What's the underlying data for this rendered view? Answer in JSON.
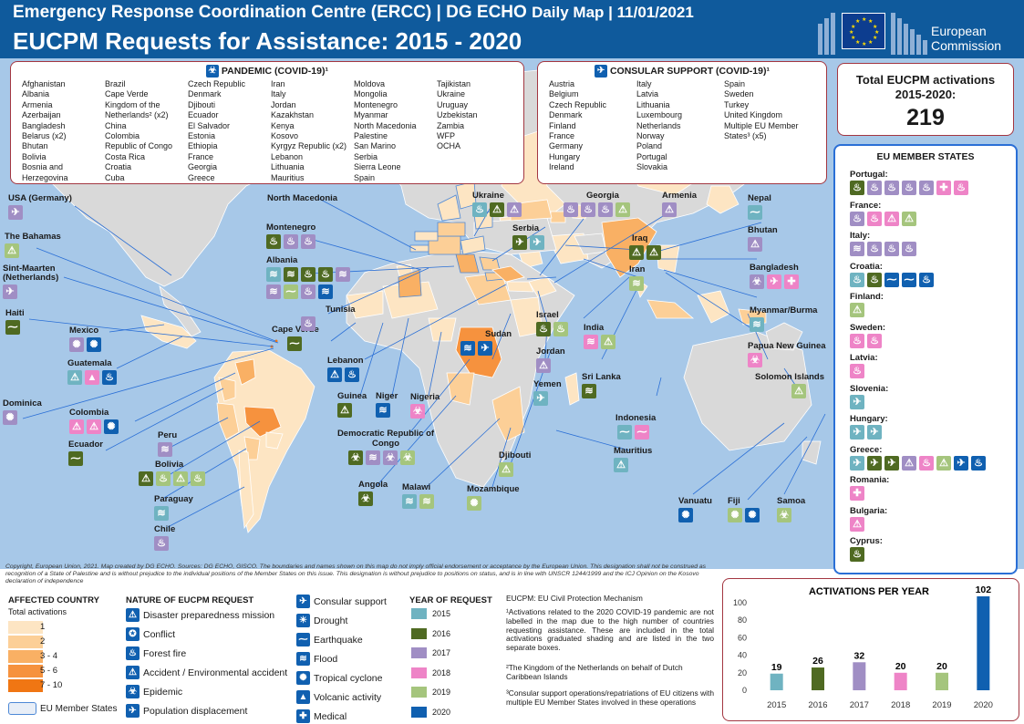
{
  "header": {
    "title_main": "Emergency Response Coordination Centre (ERCC) | DG ECHO",
    "title_right": "Daily Map | 11/01/2021",
    "subtitle": "EUCPM Requests for Assistance: 2015 - 2020",
    "logo_line1": "European",
    "logo_line2": "Commission"
  },
  "pandemic": {
    "title": "PANDEMIC (COVID-19)¹",
    "columns": [
      [
        "Afghanistan",
        "Albania",
        "Armenia",
        "Azerbaijan",
        "Bangladesh",
        "Belarus (x2)",
        "Bhutan",
        "Bolivia",
        "Bosnia and",
        "Herzegovina"
      ],
      [
        "Brazil",
        "Cape Verde",
        "Kingdom of the",
        "Netherlands² (x2)",
        "China",
        "Colombia",
        "Republic of Congo",
        "Costa Rica",
        "Croatia",
        "Cuba"
      ],
      [
        "Czech Republic",
        "Denmark",
        "Djibouti",
        "Ecuador",
        "El Salvador",
        "Estonia",
        "Ethiopia",
        "France",
        "Georgia",
        "Greece"
      ],
      [
        "Iran",
        "Italy",
        "Jordan",
        "Kazakhstan",
        "Kenya",
        "Kosovo",
        "Kyrgyz Republic (x2)",
        "Lebanon",
        "Lithuania",
        "Mauritius"
      ],
      [
        "Moldova",
        "Mongolia",
        "Montenegro",
        "Myanmar",
        "North Macedonia",
        "Palestine",
        "San Marino",
        "Serbia",
        "Sierra Leone",
        "Spain"
      ],
      [
        "Tajikistan",
        "Ukraine",
        "Uruguay",
        "Uzbekistan",
        "Zambia",
        "WFP",
        "OCHA"
      ]
    ]
  },
  "consular": {
    "title": "CONSULAR SUPPORT (COVID-19)¹",
    "columns": [
      [
        "Austria",
        "Belgium",
        "Czech Republic",
        "Denmark",
        "Finland",
        "France",
        "Germany",
        "Hungary",
        "Ireland"
      ],
      [
        "Italy",
        "Latvia",
        "Lithuania",
        "Luxembourg",
        "Netherlands",
        "Norway",
        "Poland",
        "Portugal",
        "Slovakia"
      ],
      [
        "Spain",
        "Sweden",
        "Turkey",
        "United Kingdom",
        "Multiple EU Member",
        "States³ (x5)"
      ]
    ]
  },
  "total": {
    "label_1": "Total EUCPM  activations",
    "label_2": "2015-2020:",
    "value": "219"
  },
  "eu_panel": {
    "title": "EU MEMBER STATES",
    "rows": [
      {
        "name": "Portugal:",
        "icons": [
          {
            "y": "2016",
            "g": "♨"
          },
          {
            "y": "2017",
            "g": "♨"
          },
          {
            "y": "2017",
            "g": "♨"
          },
          {
            "y": "2017",
            "g": "♨"
          },
          {
            "y": "2017",
            "g": "♨"
          },
          {
            "y": "2018",
            "g": "✚"
          },
          {
            "y": "2018",
            "g": "♨"
          }
        ]
      },
      {
        "name": "France:",
        "icons": [
          {
            "y": "2017",
            "g": "♨"
          },
          {
            "y": "2018",
            "g": "♨"
          },
          {
            "y": "2018",
            "g": "⚠"
          },
          {
            "y": "2019",
            "g": "⚠"
          }
        ]
      },
      {
        "name": "Italy:",
        "icons": [
          {
            "y": "2017",
            "g": "≋"
          },
          {
            "y": "2017",
            "g": "♨"
          },
          {
            "y": "2017",
            "g": "♨"
          },
          {
            "y": "2017",
            "g": "♨"
          }
        ]
      },
      {
        "name": "Croatia:",
        "icons": [
          {
            "y": "2015",
            "g": "♨"
          },
          {
            "y": "2016",
            "g": "♨"
          },
          {
            "y": "2020",
            "g": "⁓"
          },
          {
            "y": "2020",
            "g": "⁓"
          },
          {
            "y": "2020",
            "g": "♨"
          }
        ]
      },
      {
        "name": "Finland:",
        "icons": [
          {
            "y": "2019",
            "g": "⚠"
          }
        ]
      },
      {
        "name": "Sweden:",
        "icons": [
          {
            "y": "2018",
            "g": "♨"
          },
          {
            "y": "2018",
            "g": "♨"
          }
        ]
      },
      {
        "name": "Latvia:",
        "icons": [
          {
            "y": "2018",
            "g": "♨"
          }
        ]
      },
      {
        "name": "Slovenia:",
        "icons": [
          {
            "y": "2015",
            "g": "✈"
          }
        ]
      },
      {
        "name": "Hungary:",
        "icons": [
          {
            "y": "2015",
            "g": "✈"
          },
          {
            "y": "2015",
            "g": "✈"
          }
        ]
      },
      {
        "name": "Greece:",
        "icons": [
          {
            "y": "2015",
            "g": "✈"
          },
          {
            "y": "2016",
            "g": "✈"
          },
          {
            "y": "2016",
            "g": "✈"
          },
          {
            "y": "2017",
            "g": "⚠"
          },
          {
            "y": "2018",
            "g": "♨"
          },
          {
            "y": "2019",
            "g": "⚠"
          },
          {
            "y": "2020",
            "g": "✈"
          },
          {
            "y": "2020",
            "g": "♨"
          }
        ]
      },
      {
        "name": "Romania:",
        "icons": [
          {
            "y": "2018",
            "g": "✚"
          }
        ]
      },
      {
        "name": "Bulgaria:",
        "icons": [
          {
            "y": "2018",
            "g": "⚠"
          }
        ]
      },
      {
        "name": "Cyprus:",
        "icons": [
          {
            "y": "2016",
            "g": "♨"
          }
        ]
      }
    ]
  },
  "map_labels": [
    {
      "name": "USA (Germany)",
      "icons": [
        {
          "y": "2017",
          "g": "✈"
        }
      ]
    },
    {
      "name": "The Bahamas",
      "icons": [
        {
          "y": "2019",
          "g": "⚠"
        }
      ]
    },
    {
      "name": "Sint-Maarten (Netherlands)",
      "icons": [
        {
          "y": "2017",
          "g": "✈"
        }
      ]
    },
    {
      "name": "Haiti",
      "icons": [
        {
          "y": "2016",
          "g": "⁓"
        }
      ]
    },
    {
      "name": "Mexico",
      "icons": [
        {
          "y": "2017",
          "g": "✺"
        },
        {
          "y": "2020",
          "g": "✺"
        }
      ]
    },
    {
      "name": "Guatemala",
      "icons": [
        {
          "y": "2015",
          "g": "⚠"
        },
        {
          "y": "2018",
          "g": "▲"
        },
        {
          "y": "2020",
          "g": "♨"
        }
      ]
    },
    {
      "name": "Dominica",
      "icons": [
        {
          "y": "2017",
          "g": "✺"
        }
      ]
    },
    {
      "name": "Colombia",
      "icons": [
        {
          "y": "2018",
          "g": "⚠"
        },
        {
          "y": "2018",
          "g": "⚠"
        },
        {
          "y": "2020",
          "g": "✺"
        }
      ]
    },
    {
      "name": "Ecuador",
      "icons": [
        {
          "y": "2016",
          "g": "⁓"
        }
      ]
    },
    {
      "name": "Peru",
      "icons": [
        {
          "y": "2017",
          "g": "≋"
        }
      ]
    },
    {
      "name": "Bolivia",
      "icons": [
        {
          "y": "2016",
          "g": "⚠"
        },
        {
          "y": "2019",
          "g": "♨"
        },
        {
          "y": "2019",
          "g": "⚠"
        },
        {
          "y": "2019",
          "g": "♨"
        }
      ]
    },
    {
      "name": "Paraguay",
      "icons": [
        {
          "y": "2015",
          "g": "≋"
        }
      ]
    },
    {
      "name": "Chile",
      "icons": [
        {
          "y": "2017",
          "g": "♨"
        }
      ]
    },
    {
      "name": "North Macedonia",
      "icons": []
    },
    {
      "name": "Montenegro",
      "icons": [
        {
          "y": "2016",
          "g": "♨"
        },
        {
          "y": "2017",
          "g": "♨"
        },
        {
          "y": "2017",
          "g": "♨"
        }
      ]
    },
    {
      "name": "Albania",
      "icons": [
        {
          "y": "2015",
          "g": "≋"
        },
        {
          "y": "2016",
          "g": "≋"
        },
        {
          "y": "2016",
          "g": "♨"
        },
        {
          "y": "2016",
          "g": "♨"
        },
        {
          "y": "2017",
          "g": "≋"
        },
        {
          "y": "2017",
          "g": "≋"
        },
        {
          "y": "2019",
          "g": "⁓"
        },
        {
          "y": "2017",
          "g": "♨"
        },
        {
          "y": "2020",
          "g": "≋"
        }
      ]
    },
    {
      "name": "Cape Verde",
      "icons": [
        {
          "y": "2016",
          "g": "⁓"
        }
      ]
    },
    {
      "name": "Tunisia",
      "icons": [
        {
          "y": "2017",
          "g": "♨"
        }
      ]
    },
    {
      "name": "Lebanon",
      "icons": [
        {
          "y": "2020",
          "g": "⚠"
        },
        {
          "y": "2020",
          "g": "♨"
        }
      ]
    },
    {
      "name": "Guinea",
      "icons": [
        {
          "y": "2016",
          "g": "⚠"
        }
      ]
    },
    {
      "name": "Niger",
      "icons": [
        {
          "y": "2020",
          "g": "≋"
        }
      ]
    },
    {
      "name": "Nigeria",
      "icons": [
        {
          "y": "2018",
          "g": "☣"
        }
      ]
    },
    {
      "name": "Democratic Republic of Congo",
      "icons": [
        {
          "y": "2016",
          "g": "☣"
        },
        {
          "y": "2017",
          "g": "≋"
        },
        {
          "y": "2017",
          "g": "☣"
        },
        {
          "y": "2019",
          "g": "☣"
        }
      ]
    },
    {
      "name": "Angola",
      "icons": [
        {
          "y": "2016",
          "g": "☣"
        }
      ]
    },
    {
      "name": "Malawi",
      "icons": [
        {
          "y": "2015",
          "g": "≋"
        },
        {
          "y": "2019",
          "g": "≋"
        }
      ]
    },
    {
      "name": "Mozambique",
      "icons": [
        {
          "y": "2019",
          "g": "✺"
        }
      ]
    },
    {
      "name": "Ukraine",
      "icons": [
        {
          "y": "2015",
          "g": "♨"
        },
        {
          "y": "2016",
          "g": "⚠"
        },
        {
          "y": "2017",
          "g": "⚠"
        }
      ]
    },
    {
      "name": "Georgia",
      "icons": [
        {
          "y": "2017",
          "g": "♨"
        },
        {
          "y": "2017",
          "g": "♨"
        },
        {
          "y": "2017",
          "g": "♨"
        },
        {
          "y": "2019",
          "g": "⚠"
        }
      ]
    },
    {
      "name": "Armenia",
      "icons": [
        {
          "y": "2017",
          "g": "⚠"
        }
      ]
    },
    {
      "name": "Serbia",
      "icons": [
        {
          "y": "2016",
          "g": "✈"
        },
        {
          "y": "2015",
          "g": "✈"
        }
      ]
    },
    {
      "name": "Iraq",
      "icons": [
        {
          "y": "2016",
          "g": "⚠"
        },
        {
          "y": "2016",
          "g": "⚠"
        }
      ]
    },
    {
      "name": "Iran",
      "icons": [
        {
          "y": "2019",
          "g": "≋"
        }
      ]
    },
    {
      "name": "Israel",
      "icons": [
        {
          "y": "2016",
          "g": "♨"
        },
        {
          "y": "2019",
          "g": "♨"
        }
      ]
    },
    {
      "name": "Jordan",
      "icons": [
        {
          "y": "2017",
          "g": "⚠"
        }
      ]
    },
    {
      "name": "Sudan",
      "icons": [
        {
          "y": "2020",
          "g": "≋"
        },
        {
          "y": "2020",
          "g": "✈"
        }
      ]
    },
    {
      "name": "Yemen",
      "icons": [
        {
          "y": "2015",
          "g": "✈"
        }
      ]
    },
    {
      "name": "India",
      "icons": [
        {
          "y": "2018",
          "g": "≋"
        },
        {
          "y": "2019",
          "g": "⚠"
        }
      ]
    },
    {
      "name": "Sri Lanka",
      "icons": [
        {
          "y": "2016",
          "g": "≋"
        }
      ]
    },
    {
      "name": "Djibouti",
      "icons": [
        {
          "y": "2019",
          "g": "⚠"
        }
      ]
    },
    {
      "name": "Mauritius",
      "icons": [
        {
          "y": "2015",
          "g": "⚠"
        }
      ]
    },
    {
      "name": "Indonesia",
      "icons": [
        {
          "y": "2015",
          "g": "⁓"
        },
        {
          "y": "2018",
          "g": "⁓"
        }
      ]
    },
    {
      "name": "Nepal",
      "icons": [
        {
          "y": "2015",
          "g": "⁓"
        }
      ]
    },
    {
      "name": "Bhutan",
      "icons": [
        {
          "y": "2017",
          "g": "⚠"
        }
      ]
    },
    {
      "name": "Bangladesh",
      "icons": [
        {
          "y": "2017",
          "g": "☣"
        },
        {
          "y": "2018",
          "g": "✈"
        },
        {
          "y": "2018",
          "g": "✚"
        }
      ]
    },
    {
      "name": "Myanmar/Burma",
      "icons": [
        {
          "y": "2015",
          "g": "≋"
        }
      ]
    },
    {
      "name": "Papua New Guinea",
      "icons": [
        {
          "y": "2018",
          "g": "☣"
        }
      ]
    },
    {
      "name": "Solomon Islands",
      "icons": [
        {
          "y": "2019",
          "g": "⚠"
        }
      ]
    },
    {
      "name": "Vanuatu",
      "icons": [
        {
          "y": "2020",
          "g": "✺"
        }
      ]
    },
    {
      "name": "Fiji",
      "icons": [
        {
          "y": "2019",
          "g": "✺"
        },
        {
          "y": "2020",
          "g": "✺"
        }
      ]
    },
    {
      "name": "Samoa",
      "icons": [
        {
          "y": "2019",
          "g": "☣"
        }
      ]
    }
  ],
  "footer": {
    "copyright": "Copyright, European Union, 2021. Map created by DG ECHO.  Sources: DG ECHO, GISCO. The boundaries and names shown on this map do not imply official endorsement or acceptance by the European Union. This designation shall not be construed as recognition of a State of Palestine and is without prejudice to the individual positions of the Member States on this issue. This designation is without prejudice to positions on status, and is in line with UNSCR 1244/1999  and the ICJ Opinion on the Kosovo declaration of independence",
    "affected_title": "AFFECTED COUNTRY",
    "affected_sub": "Total activations",
    "shades": [
      {
        "label": "1",
        "color": "#fde5c3"
      },
      {
        "label": "2",
        "color": "#fccf97"
      },
      {
        "label": "3 - 4",
        "color": "#f9b064"
      },
      {
        "label": "5 - 6",
        "color": "#f6923e"
      },
      {
        "label": "7 - 10",
        "color": "#f07613"
      }
    ],
    "eu_member_label": "EU Member States",
    "nature_title": "NATURE OF EUCPM REQUEST",
    "nature": [
      {
        "label": "Disaster preparedness mission",
        "g": "⚠"
      },
      {
        "label": "Conflict",
        "g": "✪"
      },
      {
        "label": "Forest fire",
        "g": "♨"
      },
      {
        "label": "Accident / Environmental accident",
        "g": "⚠"
      },
      {
        "label": "Epidemic",
        "g": "☣"
      },
      {
        "label": "Population displacement",
        "g": "✈"
      },
      {
        "label": "Consular support",
        "g": "✈"
      },
      {
        "label": "Drought",
        "g": "☀"
      },
      {
        "label": "Earthquake",
        "g": "⁓"
      },
      {
        "label": "Flood",
        "g": "≋"
      },
      {
        "label": "Tropical cyclone",
        "g": "✺"
      },
      {
        "label": "Volcanic activity",
        "g": "▲"
      },
      {
        "label": "Medical",
        "g": "✚"
      }
    ],
    "year_title": "YEAR OF REQUEST",
    "years": [
      "2015",
      "2016",
      "2017",
      "2018",
      "2019",
      "2020"
    ],
    "eucpm_def": "EUCPM: EU Civil Protection Mechanism",
    "note1": "¹Activations related to the 2020 COVID-19 pandemic are not labelled in the map due to the high number of countries requesting assistance. These are included in the total activations graduated shading and are listed in the two separate boxes.",
    "note2": "²The Kingdom of the Netherlands on behalf of Dutch Caribbean Islands",
    "note3": "³Consular support operations/repatriations of EU citizens with multiple EU Member States involved in these operations"
  },
  "colors": {
    "y2015": "#6fb3c1",
    "y2016": "#4f6a22",
    "y2017": "#a08ec4",
    "y2018": "#ee84c7",
    "y2019": "#a5c57d",
    "y2020": "#1060b0"
  },
  "chart_data": {
    "type": "bar",
    "title": "ACTIVATIONS PER YEAR",
    "categories": [
      "2015",
      "2016",
      "2017",
      "2018",
      "2019",
      "2020"
    ],
    "values": [
      19,
      26,
      32,
      20,
      20,
      102
    ],
    "colors": [
      "#6fb3c1",
      "#4f6a22",
      "#a08ec4",
      "#ee84c7",
      "#a5c57d",
      "#1060b0"
    ],
    "ylim": [
      0,
      100
    ],
    "yticks": [
      0,
      20,
      40,
      60,
      80,
      100
    ],
    "xlabel": "",
    "ylabel": ""
  }
}
